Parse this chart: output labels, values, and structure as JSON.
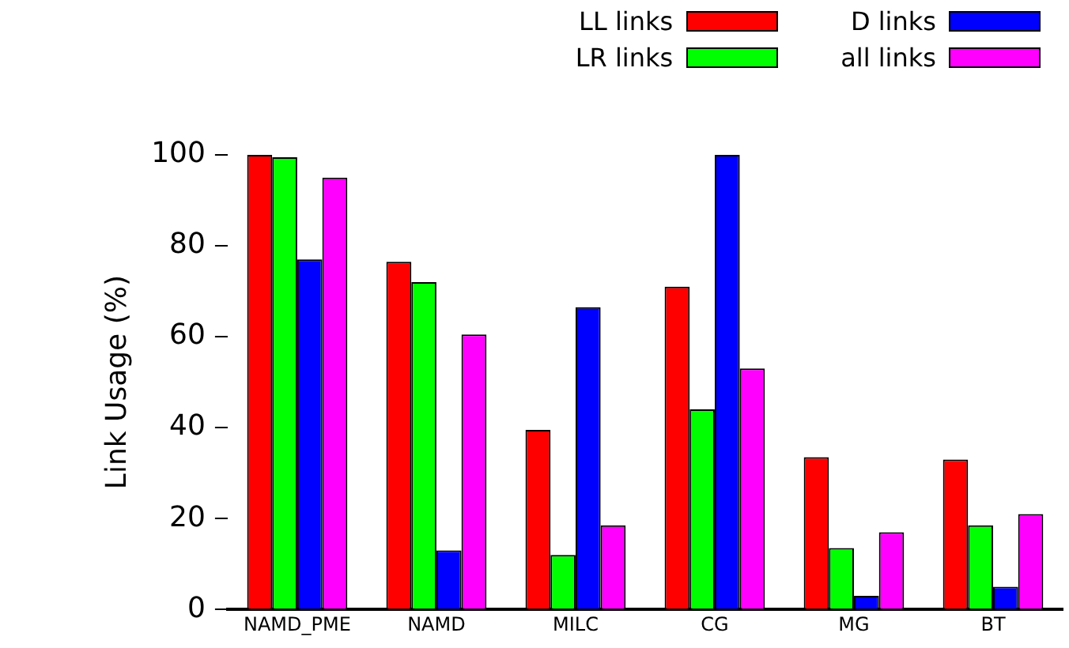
{
  "chart_data": {
    "type": "bar",
    "ylabel": "Link Usage (%)",
    "categories": [
      "NAMD_PME",
      "NAMD",
      "MILC",
      "CG",
      "MG",
      "BT"
    ],
    "series": [
      {
        "name": "LL links",
        "color": "#ff0000",
        "values": [
          100,
          76.5,
          39.5,
          71,
          33.5,
          33
        ]
      },
      {
        "name": "LR links",
        "color": "#00ff00",
        "values": [
          99.5,
          72,
          12,
          44,
          13.5,
          18.5
        ]
      },
      {
        "name": "D links",
        "color": "#0000ff",
        "values": [
          77,
          13,
          66.5,
          100,
          3,
          5
        ]
      },
      {
        "name": "all links",
        "color": "#ff00ff",
        "values": [
          95,
          60.5,
          18.5,
          53,
          17,
          21
        ]
      }
    ],
    "ylim": [
      0,
      100
    ],
    "yticks": [
      0,
      20,
      40,
      60,
      80,
      100
    ],
    "grid": false,
    "legend": "top right"
  }
}
